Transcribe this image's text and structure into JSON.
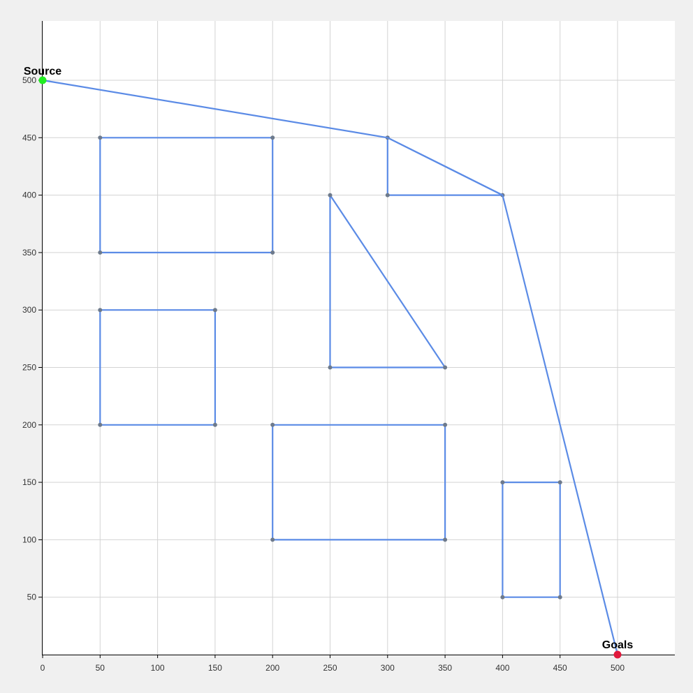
{
  "chart_data": {
    "type": "line",
    "title": "",
    "xlabel": "",
    "ylabel": "",
    "xlim": [
      0,
      550
    ],
    "ylim": [
      0,
      500
    ],
    "x_ticks": [
      0,
      50,
      100,
      150,
      200,
      250,
      300,
      350,
      400,
      450,
      500
    ],
    "y_ticks": [
      50,
      100,
      150,
      200,
      250,
      300,
      350,
      400,
      450,
      500
    ],
    "grid": true,
    "colors": {
      "edge": "#5b8be6",
      "vertex": "#6d7a8c",
      "source": "#22ee22",
      "goal": "#e0193c",
      "grid": "#d3d3d3",
      "axis": "#000000",
      "plot_bg": "#ffffff"
    },
    "source": {
      "label": "Source",
      "x": 0,
      "y": 500
    },
    "goal": {
      "label": "Goals",
      "x": 500,
      "y": 0
    },
    "obstacles": [
      {
        "name": "rectangle",
        "points": [
          [
            50,
            450
          ],
          [
            200,
            450
          ],
          [
            200,
            350
          ],
          [
            50,
            350
          ]
        ]
      },
      {
        "name": "rectangle",
        "points": [
          [
            50,
            300
          ],
          [
            150,
            300
          ],
          [
            150,
            200
          ],
          [
            50,
            200
          ]
        ]
      },
      {
        "name": "triangle",
        "points": [
          [
            250,
            400
          ],
          [
            350,
            250
          ],
          [
            250,
            250
          ]
        ]
      },
      {
        "name": "triangle",
        "points": [
          [
            300,
            450
          ],
          [
            400,
            400
          ],
          [
            300,
            400
          ]
        ]
      },
      {
        "name": "rectangle",
        "points": [
          [
            200,
            200
          ],
          [
            350,
            200
          ],
          [
            350,
            100
          ],
          [
            200,
            100
          ]
        ]
      },
      {
        "name": "rectangle",
        "points": [
          [
            400,
            150
          ],
          [
            450,
            150
          ],
          [
            450,
            50
          ],
          [
            400,
            50
          ]
        ]
      }
    ],
    "path": [
      [
        0,
        500
      ],
      [
        300,
        450
      ],
      [
        400,
        400
      ],
      [
        500,
        0
      ]
    ]
  }
}
